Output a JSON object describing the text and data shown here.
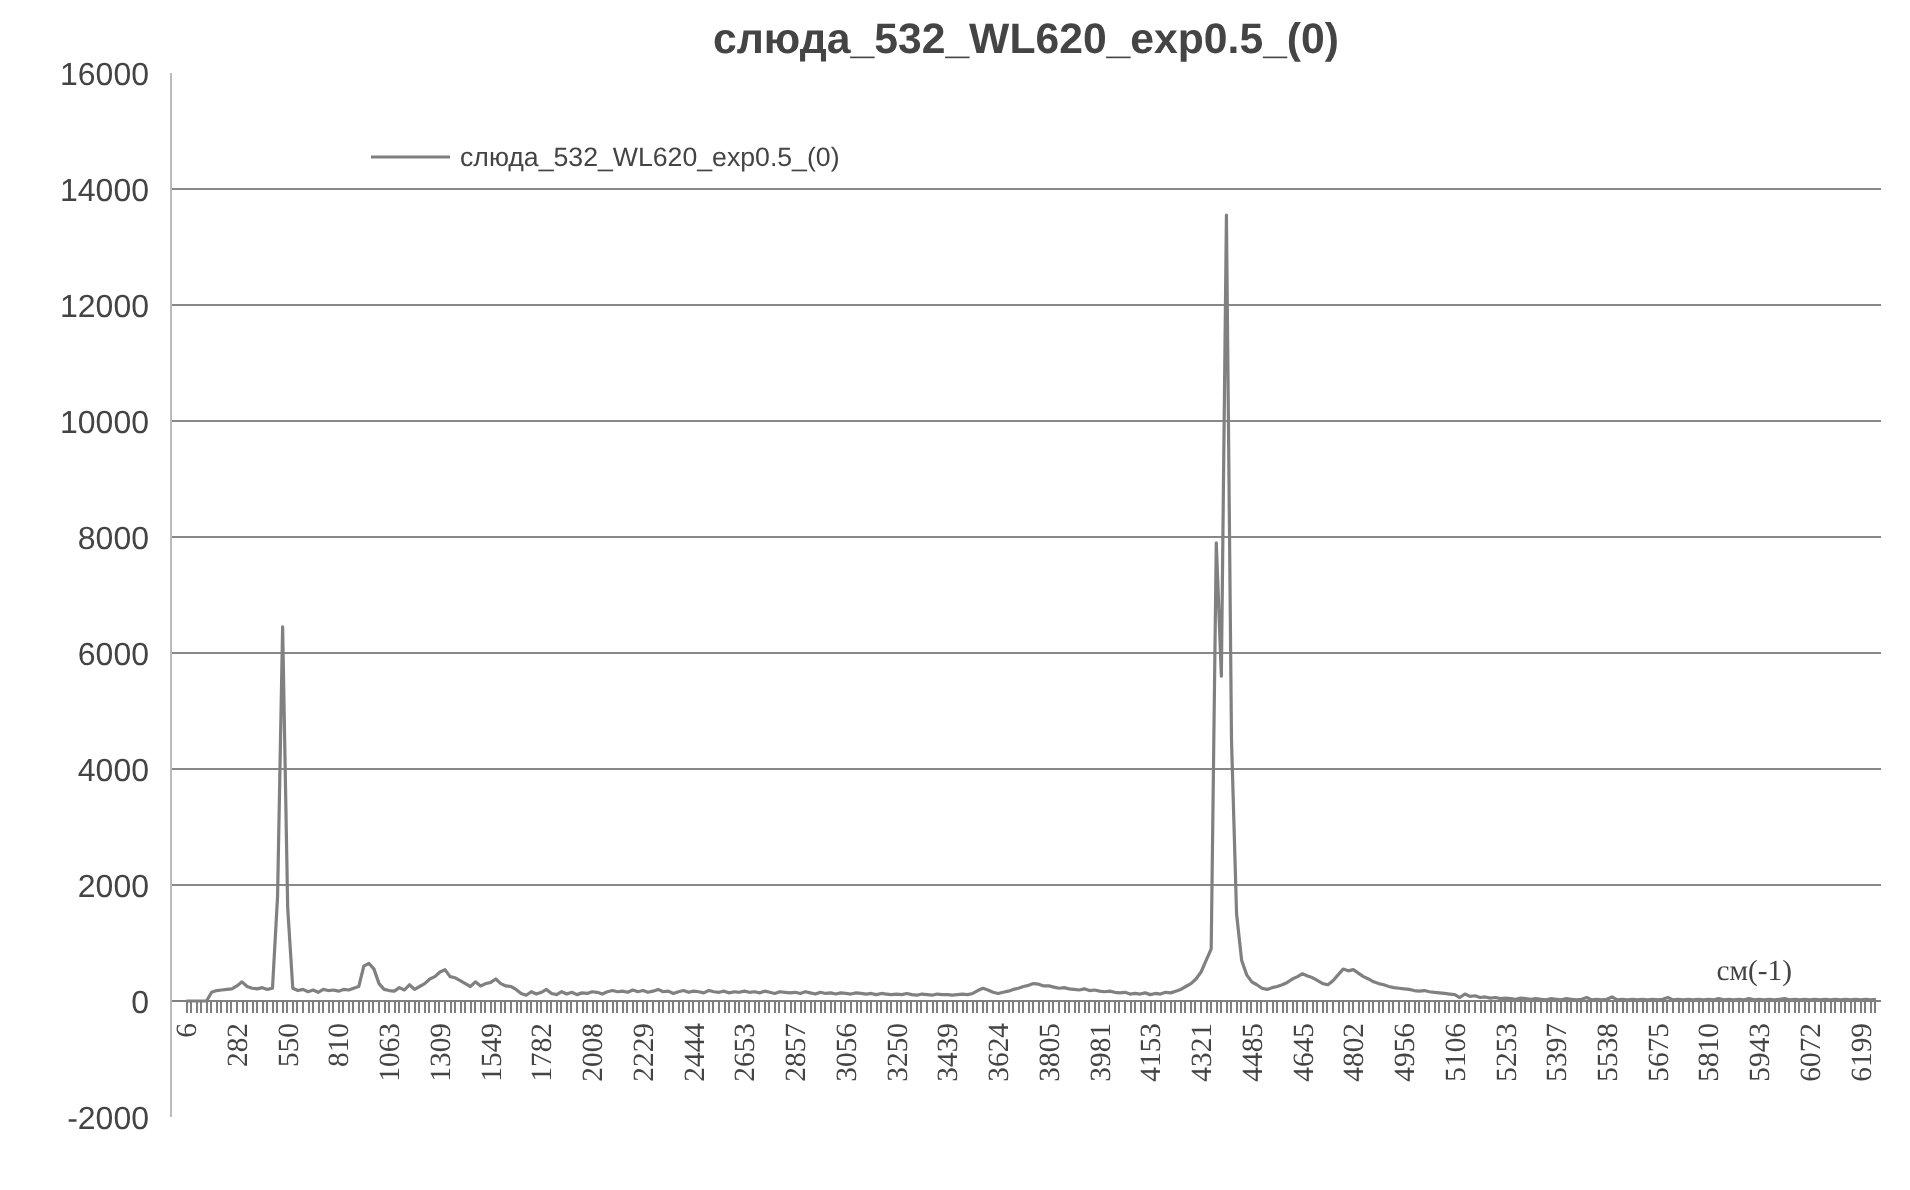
{
  "chart_data": {
    "type": "line",
    "title": "слюда_532_WL620_exp0.5_(0)",
    "xlabel": "см(-1)",
    "categories": [
      "6",
      null,
      null,
      null,
      null,
      null,
      null,
      null,
      null,
      null,
      "282",
      null,
      null,
      null,
      null,
      null,
      null,
      null,
      null,
      null,
      "550",
      null,
      null,
      null,
      null,
      null,
      null,
      null,
      null,
      null,
      "810",
      null,
      null,
      null,
      null,
      null,
      null,
      null,
      null,
      null,
      "1063",
      null,
      null,
      null,
      null,
      null,
      null,
      null,
      null,
      null,
      "1309",
      null,
      null,
      null,
      null,
      null,
      null,
      null,
      null,
      null,
      "1549",
      null,
      null,
      null,
      null,
      null,
      null,
      null,
      null,
      null,
      "1782",
      null,
      null,
      null,
      null,
      null,
      null,
      null,
      null,
      null,
      "2008",
      null,
      null,
      null,
      null,
      null,
      null,
      null,
      null,
      null,
      "2229",
      null,
      null,
      null,
      null,
      null,
      null,
      null,
      null,
      null,
      "2444",
      null,
      null,
      null,
      null,
      null,
      null,
      null,
      null,
      null,
      "2653",
      null,
      null,
      null,
      null,
      null,
      null,
      null,
      null,
      null,
      "2857",
      null,
      null,
      null,
      null,
      null,
      null,
      null,
      null,
      null,
      "3056",
      null,
      null,
      null,
      null,
      null,
      null,
      null,
      null,
      null,
      "3250",
      null,
      null,
      null,
      null,
      null,
      null,
      null,
      null,
      null,
      "3439",
      null,
      null,
      null,
      null,
      null,
      null,
      null,
      null,
      null,
      "3624",
      null,
      null,
      null,
      null,
      null,
      null,
      null,
      null,
      null,
      "3805",
      null,
      null,
      null,
      null,
      null,
      null,
      null,
      null,
      null,
      "3981",
      null,
      null,
      null,
      null,
      null,
      null,
      null,
      null,
      null,
      "4153",
      null,
      null,
      null,
      null,
      null,
      null,
      null,
      null,
      null,
      "4321",
      null,
      null,
      null,
      null,
      null,
      null,
      null,
      null,
      null,
      "4485",
      null,
      null,
      null,
      null,
      null,
      null,
      null,
      null,
      null,
      "4645",
      null,
      null,
      null,
      null,
      null,
      null,
      null,
      null,
      null,
      "4802",
      null,
      null,
      null,
      null,
      null,
      null,
      null,
      null,
      null,
      "4956",
      null,
      null,
      null,
      null,
      null,
      null,
      null,
      null,
      null,
      "5106",
      null,
      null,
      null,
      null,
      null,
      null,
      null,
      null,
      null,
      "5253",
      null,
      null,
      null,
      null,
      null,
      null,
      null,
      null,
      null,
      "5397",
      null,
      null,
      null,
      null,
      null,
      null,
      null,
      null,
      null,
      "5538",
      null,
      null,
      null,
      null,
      null,
      null,
      null,
      null,
      null,
      "5675",
      null,
      null,
      null,
      null,
      null,
      null,
      null,
      null,
      null,
      "5810",
      null,
      null,
      null,
      null,
      null,
      null,
      null,
      null,
      null,
      "5943",
      null,
      null,
      null,
      null,
      null,
      null,
      null,
      null,
      null,
      "6072",
      null,
      null,
      null,
      null,
      null,
      null,
      null,
      null,
      null,
      "6199",
      null,
      null,
      null
    ],
    "series": [
      {
        "name": "слюда_532_WL620_exp0.5_(0)",
        "color": "#808080",
        "values": [
          0,
          0,
          0,
          0,
          0,
          150,
          180,
          190,
          200,
          210,
          260,
          330,
          250,
          220,
          210,
          230,
          200,
          220,
          1800,
          6450,
          1600,
          220,
          180,
          200,
          160,
          190,
          150,
          200,
          180,
          190,
          170,
          200,
          190,
          220,
          250,
          600,
          650,
          550,
          300,
          200,
          180,
          170,
          230,
          190,
          280,
          200,
          250,
          300,
          380,
          420,
          500,
          540,
          420,
          400,
          350,
          300,
          250,
          330,
          260,
          300,
          320,
          380,
          300,
          260,
          250,
          200,
          130,
          100,
          160,
          120,
          150,
          200,
          130,
          110,
          160,
          120,
          150,
          110,
          140,
          130,
          160,
          150,
          120,
          160,
          180,
          160,
          170,
          150,
          190,
          160,
          180,
          150,
          170,
          200,
          160,
          170,
          130,
          160,
          180,
          150,
          170,
          160,
          140,
          180,
          160,
          150,
          170,
          140,
          160,
          150,
          170,
          150,
          160,
          140,
          170,
          150,
          130,
          160,
          150,
          140,
          150,
          130,
          160,
          140,
          120,
          150,
          130,
          140,
          120,
          140,
          130,
          120,
          140,
          130,
          120,
          130,
          110,
          130,
          120,
          110,
          120,
          110,
          130,
          110,
          100,
          120,
          110,
          100,
          120,
          110,
          110,
          100,
          110,
          120,
          110,
          130,
          180,
          220,
          190,
          150,
          130,
          150,
          170,
          200,
          220,
          250,
          270,
          300,
          290,
          260,
          260,
          240,
          220,
          230,
          210,
          200,
          190,
          210,
          180,
          190,
          170,
          160,
          170,
          150,
          140,
          150,
          120,
          130,
          120,
          140,
          110,
          130,
          120,
          150,
          140,
          170,
          200,
          250,
          300,
          380,
          500,
          700,
          900,
          7900,
          5600,
          13550,
          4500,
          1500,
          700,
          450,
          330,
          280,
          220,
          200,
          230,
          250,
          280,
          320,
          380,
          420,
          470,
          430,
          400,
          350,
          300,
          280,
          350,
          450,
          550,
          520,
          540,
          480,
          420,
          380,
          330,
          300,
          280,
          250,
          230,
          220,
          210,
          200,
          180,
          170,
          180,
          160,
          150,
          140,
          130,
          120,
          110,
          60,
          120,
          80,
          90,
          60,
          70,
          50,
          60,
          40,
          50,
          40,
          30,
          50,
          40,
          30,
          40,
          30,
          20,
          40,
          30,
          20,
          40,
          30,
          20,
          30,
          60,
          20,
          30,
          20,
          30,
          70,
          20,
          30,
          20,
          30,
          20,
          30,
          20,
          30,
          20,
          30,
          60,
          20,
          30,
          20,
          30,
          20,
          30,
          20,
          30,
          20,
          40,
          20,
          30,
          20,
          30,
          20,
          40,
          20,
          30,
          20,
          30,
          20,
          30,
          40,
          20,
          30,
          20,
          30,
          20,
          30,
          20,
          30,
          20,
          30,
          20,
          30,
          20,
          30,
          20,
          30,
          20,
          30
        ]
      }
    ],
    "ylim": [
      -2000,
      16000
    ],
    "yticks": [
      -2000,
      0,
      2000,
      4000,
      6000,
      8000,
      10000,
      12000,
      14000,
      16000
    ],
    "grid": "y",
    "legend": "top left"
  }
}
